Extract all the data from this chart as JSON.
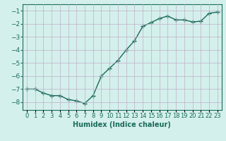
{
  "x": [
    0,
    1,
    2,
    3,
    4,
    5,
    6,
    7,
    8,
    9,
    10,
    11,
    12,
    13,
    14,
    15,
    16,
    17,
    18,
    19,
    20,
    21,
    22,
    23
  ],
  "y": [
    -7.0,
    -7.0,
    -7.3,
    -7.5,
    -7.5,
    -7.8,
    -7.9,
    -8.1,
    -7.5,
    -6.0,
    -5.4,
    -4.8,
    -4.0,
    -3.3,
    -2.2,
    -1.9,
    -1.6,
    -1.4,
    -1.7,
    -1.7,
    -1.85,
    -1.8,
    -1.2,
    -1.1
  ],
  "line_color": "#1a6b5a",
  "marker": "+",
  "marker_size": 4,
  "bg_color": "#d4f0ec",
  "grid_color": "#c0afc8",
  "axis_color": "#1a6b5a",
  "xlabel": "Humidex (Indice chaleur)",
  "xlabel_fontsize": 7,
  "yticks": [
    -8,
    -7,
    -6,
    -5,
    -4,
    -3,
    -2,
    -1
  ],
  "ylim": [
    -8.6,
    -0.5
  ],
  "xlim": [
    -0.5,
    23.5
  ],
  "tick_fontsize": 6.5,
  "line_width": 1.0
}
